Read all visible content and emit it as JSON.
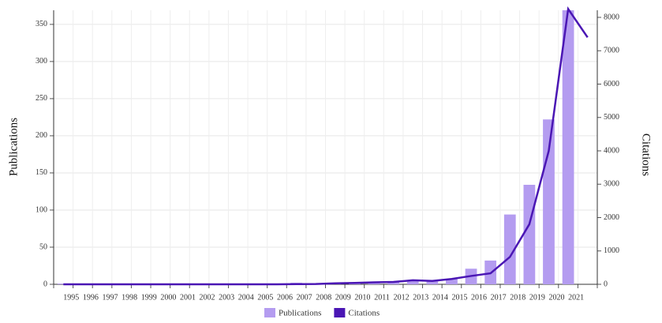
{
  "chart_data": {
    "type": "bar_line",
    "categories": [
      "1995",
      "1996",
      "1997",
      "1998",
      "1999",
      "2000",
      "2001",
      "2002",
      "2003",
      "2004",
      "2005",
      "2006",
      "2007",
      "2008",
      "2009",
      "2010",
      "2011",
      "2012",
      "2013",
      "2014",
      "2015",
      "2016",
      "2017",
      "2018",
      "2019",
      "2020",
      "2021",
      null
    ],
    "series": [
      {
        "name": "Publications",
        "color": "#b49cf0",
        "type": "bar",
        "values": [
          1,
          0,
          0,
          1,
          0,
          0,
          0,
          0,
          0,
          0,
          0,
          0,
          2,
          1,
          1,
          2,
          3,
          3,
          5,
          5,
          7,
          21,
          32,
          94,
          134,
          222,
          369,
          null
        ]
      },
      {
        "name": "Citations",
        "color": "#4a16b4",
        "type": "line",
        "axis": "y2",
        "values": [
          0,
          0,
          0,
          0,
          0,
          0,
          0,
          0,
          0,
          0,
          0,
          0,
          5,
          10,
          30,
          40,
          60,
          70,
          120,
          100,
          160,
          250,
          330,
          820,
          1800,
          4000,
          8250,
          7400
        ]
      }
    ],
    "ylabel": "Publications",
    "y2label": "Citations",
    "ylim": [
      0,
      369
    ],
    "yticks": [
      0,
      50,
      100,
      150,
      200,
      250,
      300,
      350
    ],
    "y2lim": [
      0,
      8213
    ],
    "y2ticks": [
      0,
      1000,
      2000,
      3000,
      4000,
      5000,
      6000,
      7000,
      8000
    ],
    "grid": true,
    "legend": "bottom"
  }
}
